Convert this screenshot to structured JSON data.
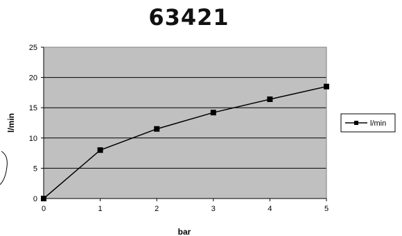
{
  "chart_data": {
    "type": "line",
    "title": "63421",
    "xlabel": "bar",
    "ylabel": "l/min",
    "x": [
      0,
      1,
      2,
      3,
      4,
      5
    ],
    "xlim": [
      0,
      5
    ],
    "ylim": [
      0,
      25
    ],
    "yticks": [
      0,
      5,
      10,
      15,
      20,
      25
    ],
    "xticks": [
      0,
      1,
      2,
      3,
      4,
      5
    ],
    "grid": "horizontal",
    "plot_background": "#c0c0c0",
    "series": [
      {
        "name": "l/min",
        "values": [
          0,
          8,
          11.5,
          14.2,
          16.4,
          18.5
        ],
        "color": "#000000",
        "marker": "square"
      }
    ],
    "legend": {
      "placement": "right"
    }
  }
}
